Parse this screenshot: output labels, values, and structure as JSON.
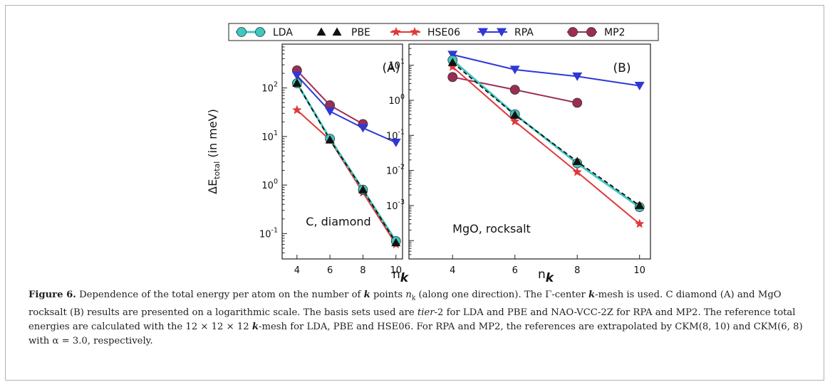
{
  "figure": {
    "ylabel": "ΔE",
    "ylabel_sub": "total",
    "ylabel_unit": "(in meV)",
    "xlabel": "n",
    "xlabel_sub": "k"
  },
  "legend": [
    {
      "name": "LDA",
      "color": "#3fc7c0",
      "marker": "circle"
    },
    {
      "name": "PBE",
      "color": "#111111",
      "marker": "triangle-up"
    },
    {
      "name": "HSE06",
      "color": "#e0393a",
      "marker": "star"
    },
    {
      "name": "RPA",
      "color": "#2f37d6",
      "marker": "triangle-down"
    },
    {
      "name": "MP2",
      "color": "#9b2d55",
      "marker": "circle"
    }
  ],
  "chart_data": [
    {
      "type": "line",
      "panel_label": "(A)",
      "annotation": "C, diamond",
      "xscale": "linear",
      "yscale": "log",
      "x_ticks": [
        4,
        6,
        8,
        10
      ],
      "y_ticks": [
        "10^-1",
        "10^0",
        "10^1",
        "10^2"
      ],
      "ylim": [
        0.03,
        800
      ],
      "series": [
        {
          "name": "LDA",
          "x": [
            4,
            6,
            8,
            10
          ],
          "values": [
            125,
            9,
            0.8,
            0.07
          ]
        },
        {
          "name": "PBE",
          "x": [
            4,
            6,
            8,
            10
          ],
          "values": [
            125,
            8.5,
            0.8,
            0.065
          ]
        },
        {
          "name": "HSE06",
          "x": [
            4,
            6,
            8,
            10
          ],
          "values": [
            35,
            8.5,
            0.7,
            0.06
          ]
        },
        {
          "name": "RPA",
          "x": [
            4,
            6,
            8,
            10
          ],
          "values": [
            180,
            33,
            15,
            7.5
          ]
        },
        {
          "name": "MP2",
          "x": [
            4,
            6,
            8
          ],
          "values": [
            230,
            44,
            18
          ]
        }
      ]
    },
    {
      "type": "line",
      "panel_label": "(B)",
      "annotation": "MgO, rocksalt",
      "xscale": "linear",
      "yscale": "log",
      "x_ticks": [
        4,
        6,
        8,
        10
      ],
      "y_ticks": [
        "10^-3",
        "10^-2",
        "10^-1",
        "10^0",
        "10^1"
      ],
      "ylim": [
        3e-05,
        40
      ],
      "series": [
        {
          "name": "LDA",
          "x": [
            4,
            6,
            8,
            10
          ],
          "values": [
            14,
            0.4,
            0.016,
            0.0009
          ]
        },
        {
          "name": "PBE",
          "x": [
            4,
            6,
            8,
            10
          ],
          "values": [
            12,
            0.38,
            0.018,
            0.001
          ]
        },
        {
          "name": "HSE06",
          "x": [
            4,
            6,
            8,
            10
          ],
          "values": [
            9,
            0.25,
            0.009,
            0.0003
          ]
        },
        {
          "name": "RPA",
          "x": [
            4,
            6,
            8,
            10
          ],
          "values": [
            20,
            7.5,
            4.8,
            2.6
          ]
        },
        {
          "name": "MP2",
          "x": [
            4,
            6,
            8
          ],
          "values": [
            4.6,
            2.0,
            0.85
          ]
        }
      ]
    }
  ],
  "caption": {
    "label": "Figure 6.",
    "p1": " Dependence of the total energy per atom on the number of ",
    "k1": "k",
    "p2": " points ",
    "nk": "n",
    "nk_sub": "k",
    "p3": " (along one direction). The Γ-center ",
    "k2": "k",
    "p4": "-mesh is used. C diamond (A) and MgO rocksalt (B) results are presented on a logarithmic scale. The basis sets used are ",
    "tier": "tier",
    "p5": "-2 for LDA and PBE and NAO-VCC-2Z for RPA and MP2. The reference total energies are calculated with the 12 × 12 × 12 ",
    "k3": "k",
    "p6": "-mesh for LDA, PBE and HSE06. For RPA and MP2, the references are extrapolated by CKM(8, 10) and CKM(6, 8) with α = 3.0, respectively."
  }
}
